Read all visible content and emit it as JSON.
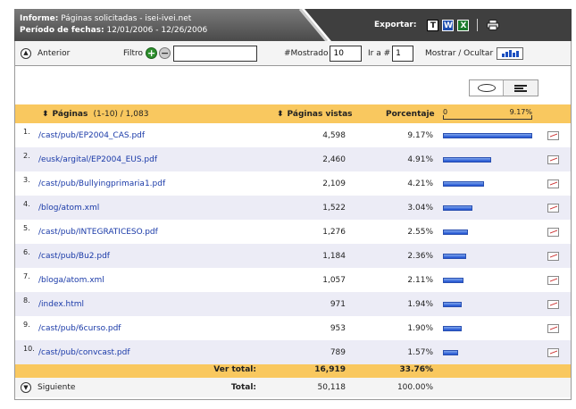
{
  "header": {
    "report_label": "Informe:",
    "report_value": "Páginas solicitadas - isei-ivei.net",
    "period_label": "Período de fechas:",
    "period_value": "12/01/2006 - 12/26/2006",
    "export_label": "Exportar:",
    "export_icons": [
      "text-export-icon",
      "word-export-icon",
      "excel-export-icon",
      "print-icon"
    ],
    "icon_letters": {
      "text": "T",
      "word": "W",
      "excel": "X"
    }
  },
  "toolbar": {
    "previous_label": "Anterior",
    "filter_label": "Filtro",
    "filter_value": "",
    "shown_label": "#Mostrado",
    "shown_value": "10",
    "goto_label": "Ir a #",
    "goto_value": "1",
    "toggle_label": "Mostrar / Ocultar"
  },
  "table": {
    "col_pages": "Páginas",
    "col_pages_range": "(1-10) / 1,083",
    "col_views": "Páginas vistas",
    "col_percent": "Porcentaje",
    "scale_min": "0",
    "scale_max": "9.17%",
    "rows": [
      {
        "n": "1.",
        "page": "/cast/pub/EP2004_CAS.pdf",
        "views": "4,598",
        "pct": "9.17%",
        "share": 9.17
      },
      {
        "n": "2.",
        "page": "/eusk/argital/EP2004_EUS.pdf",
        "views": "2,460",
        "pct": "4.91%",
        "share": 4.91
      },
      {
        "n": "3.",
        "page": "/cast/pub/Bullyingprimaria1.pdf",
        "views": "2,109",
        "pct": "4.21%",
        "share": 4.21
      },
      {
        "n": "4.",
        "page": "/blog/atom.xml",
        "views": "1,522",
        "pct": "3.04%",
        "share": 3.04
      },
      {
        "n": "5.",
        "page": "/cast/pub/INTEGRATICESO.pdf",
        "views": "1,276",
        "pct": "2.55%",
        "share": 2.55
      },
      {
        "n": "6.",
        "page": "/cast/pub/Bu2.pdf",
        "views": "1,184",
        "pct": "2.36%",
        "share": 2.36
      },
      {
        "n": "7.",
        "page": "/bloga/atom.xml",
        "views": "1,057",
        "pct": "2.11%",
        "share": 2.11
      },
      {
        "n": "8.",
        "page": "/index.html",
        "views": "971",
        "pct": "1.94%",
        "share": 1.94
      },
      {
        "n": "9.",
        "page": "/cast/pub/6curso.pdf",
        "views": "953",
        "pct": "1.90%",
        "share": 1.9
      },
      {
        "n": "10.",
        "page": "/cast/pub/convcast.pdf",
        "views": "789",
        "pct": "1.57%",
        "share": 1.57
      }
    ],
    "subtotal_label": "Ver total:",
    "subtotal_views": "16,919",
    "subtotal_pct": "33.76%",
    "total_label": "Total:",
    "total_views": "50,118",
    "total_pct": "100.00%",
    "next_label": "Siguiente"
  },
  "colors": {
    "header_dark": "#5a5a5a",
    "accent_orange": "#f9c85f",
    "link_blue": "#1a3aa8",
    "bar_blue": "#1d4fd0",
    "alt_row": "#ececf6"
  }
}
